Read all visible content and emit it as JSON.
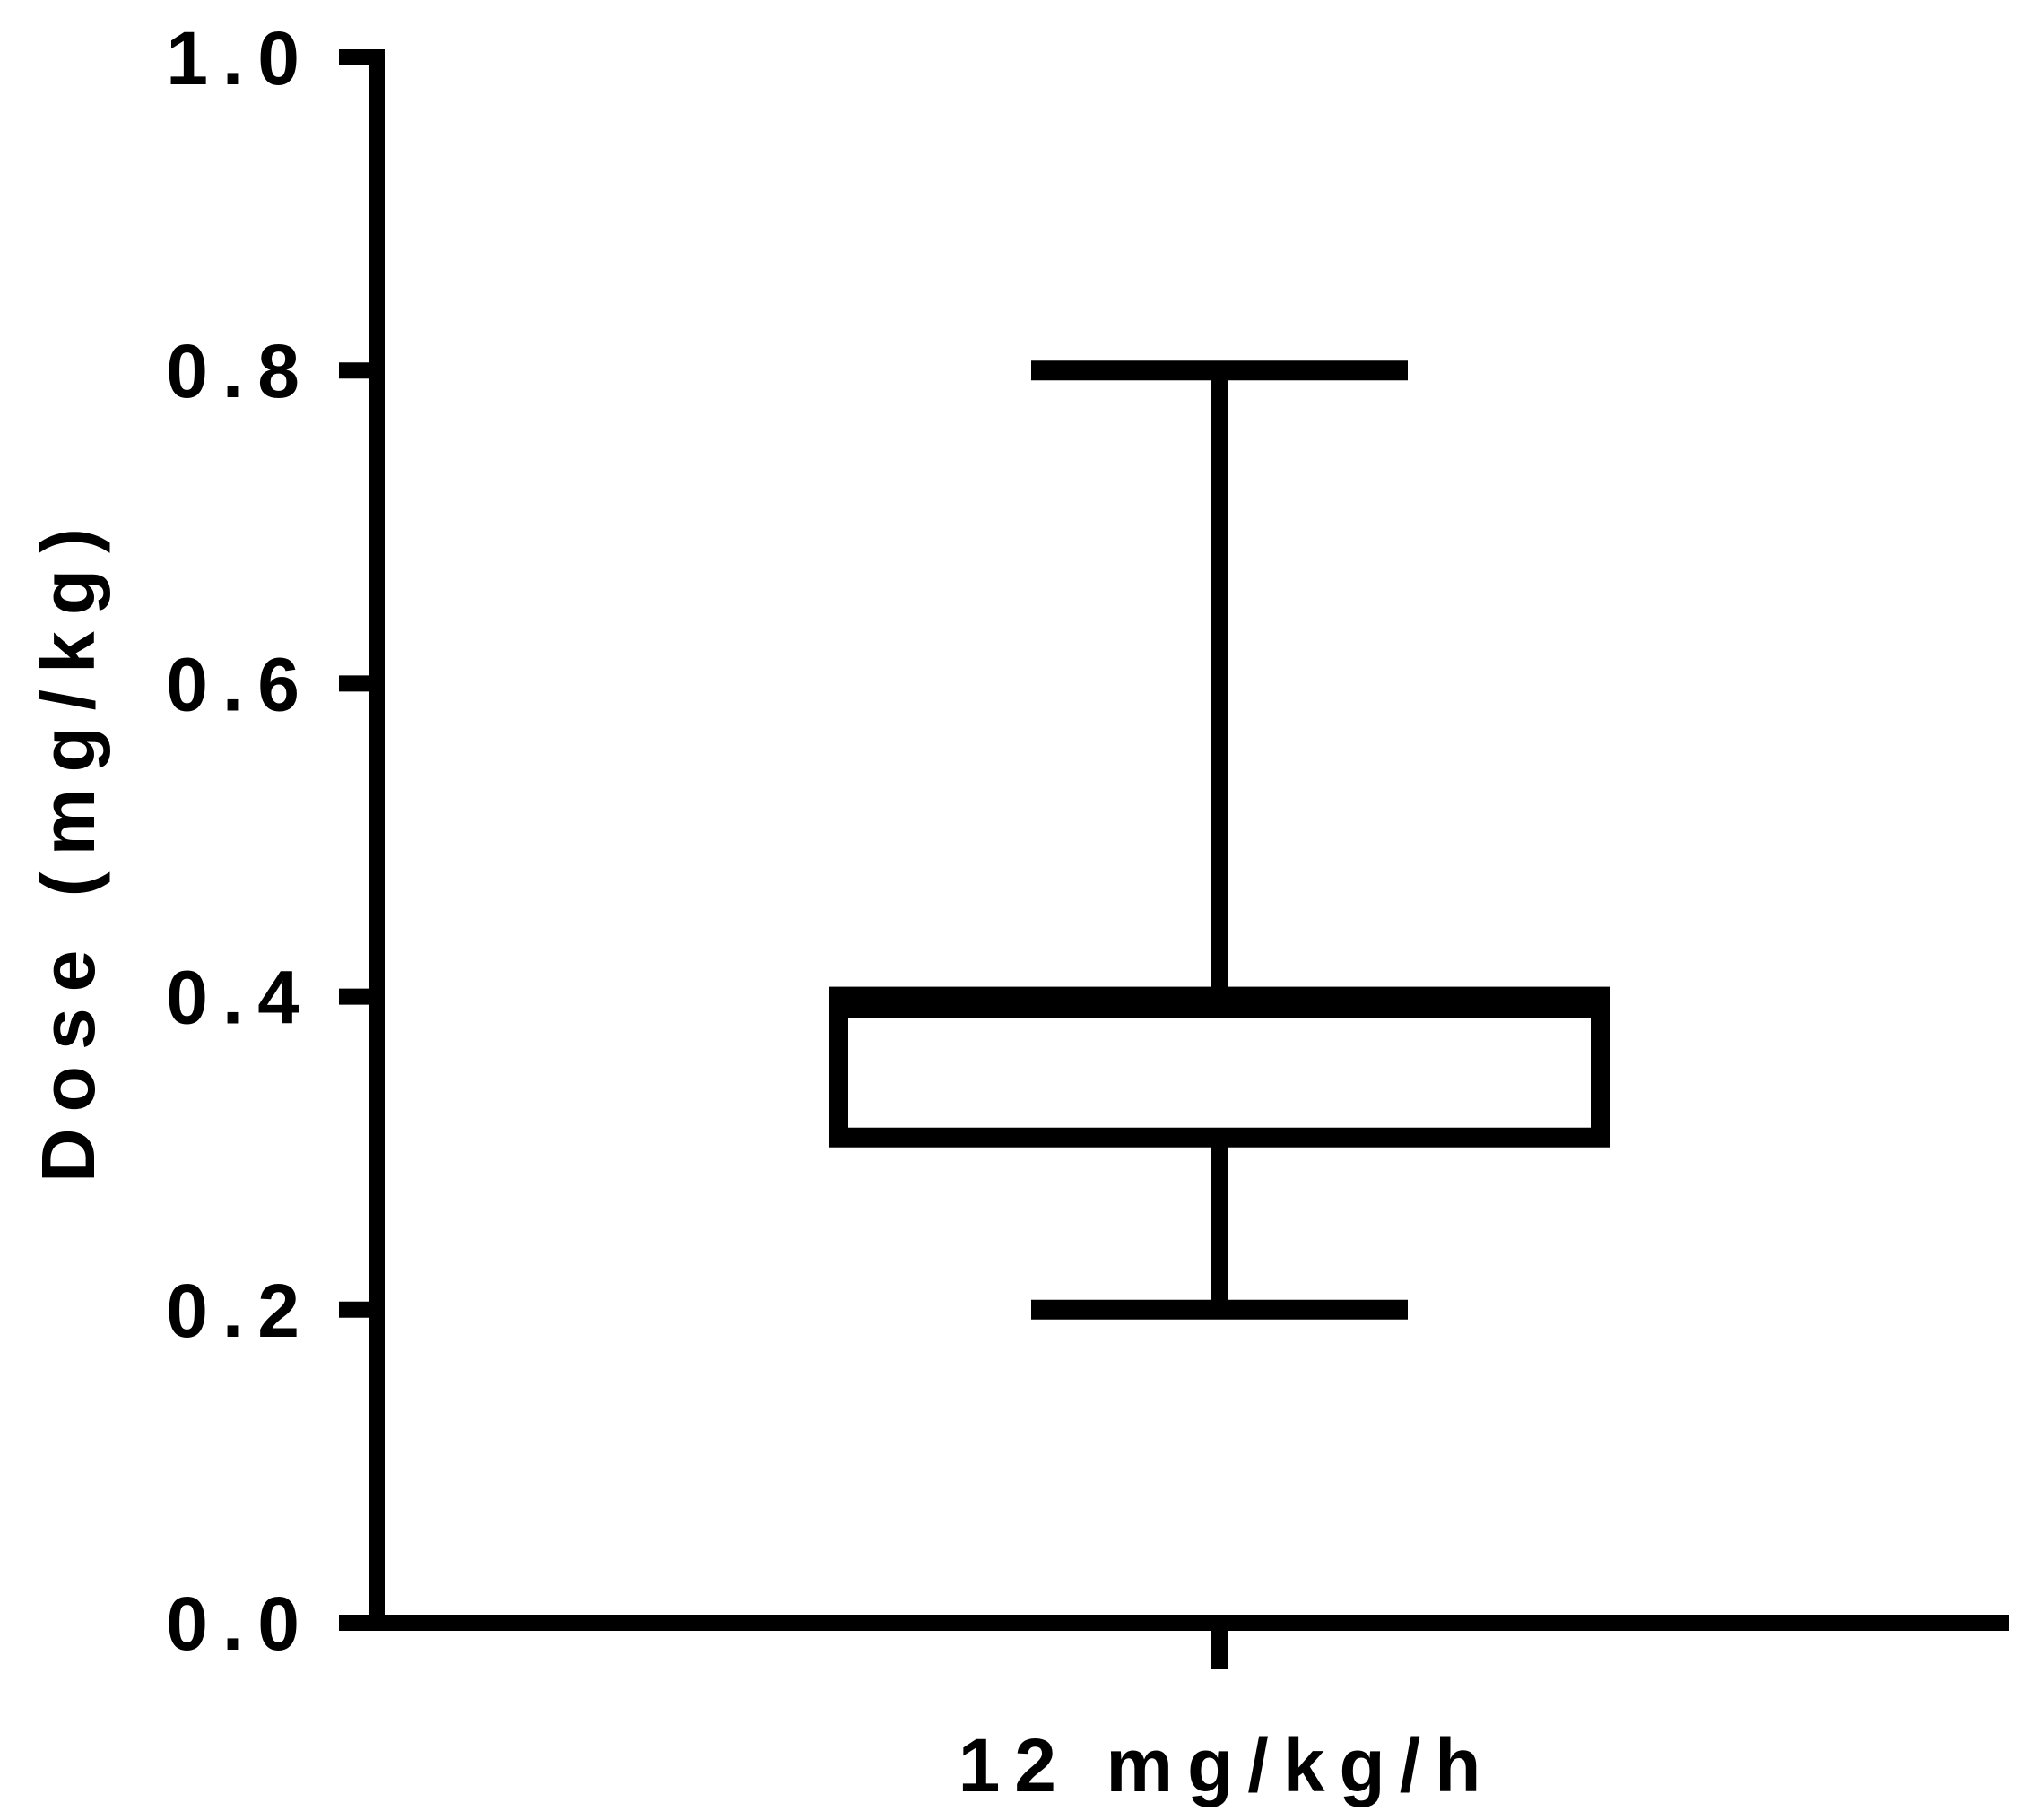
{
  "chart_data": {
    "type": "box",
    "title": "",
    "ylabel": "Dose (mg/kg)",
    "xlabel": "",
    "ylim": [
      0.0,
      1.0
    ],
    "y_ticks": [
      "0.0",
      "0.2",
      "0.4",
      "0.6",
      "0.8",
      "1.0"
    ],
    "categories": [
      "12 mg/kg/h"
    ],
    "series": [
      {
        "category": "12 mg/kg/h",
        "min": 0.2,
        "q1": 0.31,
        "median": 0.4,
        "q3": 0.4,
        "max": 0.8
      }
    ],
    "grid": false,
    "legend": "none",
    "colors": {
      "stroke": "#000000",
      "fill": "#ffffff"
    }
  }
}
